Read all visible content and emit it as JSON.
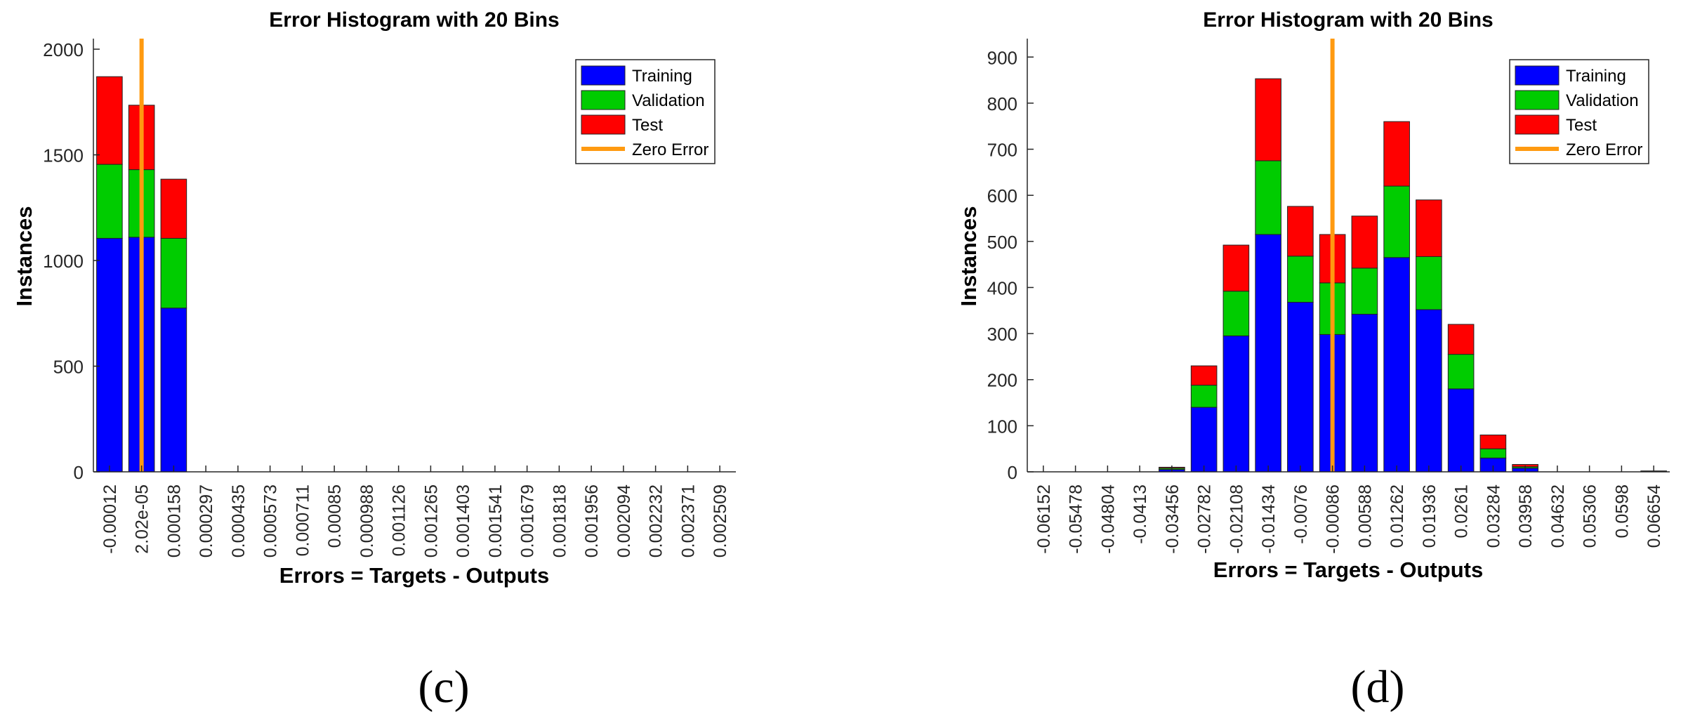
{
  "colors": {
    "training": "#0000ff",
    "validation": "#00cc00",
    "test": "#ff0000",
    "zero_error": "#ff9a10",
    "axis": "#262626",
    "text": "#000000"
  },
  "panel_labels": [
    "(c)",
    "(d)"
  ],
  "chart_data": [
    {
      "type": "bar",
      "stacked": true,
      "title": "Error Histogram with 20 Bins",
      "xlabel": "Errors = Targets - Outputs",
      "ylabel": "Instances",
      "ylim": [
        0,
        2050
      ],
      "yticks": [
        0,
        500,
        1000,
        1500,
        2000
      ],
      "categories": [
        "-0.00012",
        "2.02e-05",
        "0.000158",
        "0.000297",
        "0.000435",
        "0.000573",
        "0.000711",
        "0.00085",
        "0.000988",
        "0.001126",
        "0.001265",
        "0.001403",
        "0.001541",
        "0.001679",
        "0.001818",
        "0.001956",
        "0.002094",
        "0.002232",
        "0.002371",
        "0.002509"
      ],
      "series": [
        {
          "name": "Training",
          "values": [
            1105,
            1110,
            775,
            0,
            0,
            0,
            0,
            0,
            0,
            0,
            0,
            0,
            0,
            0,
            0,
            0,
            0,
            0,
            0,
            0
          ]
        },
        {
          "name": "Validation",
          "values": [
            350,
            320,
            330,
            0,
            0,
            0,
            0,
            0,
            0,
            0,
            0,
            0,
            0,
            0,
            0,
            0,
            0,
            0,
            0,
            0
          ]
        },
        {
          "name": "Test",
          "values": [
            415,
            305,
            280,
            0,
            0,
            0,
            0,
            0,
            0,
            0,
            0,
            0,
            0,
            0,
            0,
            0,
            0,
            0,
            0,
            0
          ]
        }
      ],
      "zero_error_bin": 1,
      "zero_error_label": "Zero Error",
      "legend_position": "top-right",
      "grid": false
    },
    {
      "type": "bar",
      "stacked": true,
      "title": "Error Histogram with 20 Bins",
      "xlabel": "Errors = Targets - Outputs",
      "ylabel": "Instances",
      "ylim": [
        0,
        940
      ],
      "yticks": [
        0,
        100,
        200,
        300,
        400,
        500,
        600,
        700,
        800,
        900
      ],
      "categories": [
        "-0.06152",
        "-0.05478",
        "-0.04804",
        "-0.0413",
        "-0.03456",
        "-0.02782",
        "-0.02108",
        "-0.01434",
        "-0.0076",
        "-0.00086",
        "0.00588",
        "0.01262",
        "0.01936",
        "0.0261",
        "0.03284",
        "0.03958",
        "0.04632",
        "0.05306",
        "0.0598",
        "0.06654"
      ],
      "series": [
        {
          "name": "Training",
          "values": [
            0,
            0,
            0,
            0,
            5,
            140,
            295,
            515,
            368,
            298,
            342,
            465,
            352,
            180,
            30,
            8,
            0,
            0,
            0,
            1
          ]
        },
        {
          "name": "Validation",
          "values": [
            0,
            0,
            0,
            0,
            3,
            48,
            97,
            160,
            100,
            112,
            100,
            155,
            115,
            75,
            20,
            3,
            0,
            0,
            0,
            0
          ]
        },
        {
          "name": "Test",
          "values": [
            0,
            0,
            0,
            0,
            2,
            42,
            100,
            178,
            108,
            105,
            113,
            140,
            123,
            65,
            30,
            5,
            0,
            0,
            0,
            1
          ]
        }
      ],
      "zero_error_bin": 9,
      "zero_error_label": "Zero Error",
      "legend_position": "top-right",
      "grid": false
    }
  ]
}
